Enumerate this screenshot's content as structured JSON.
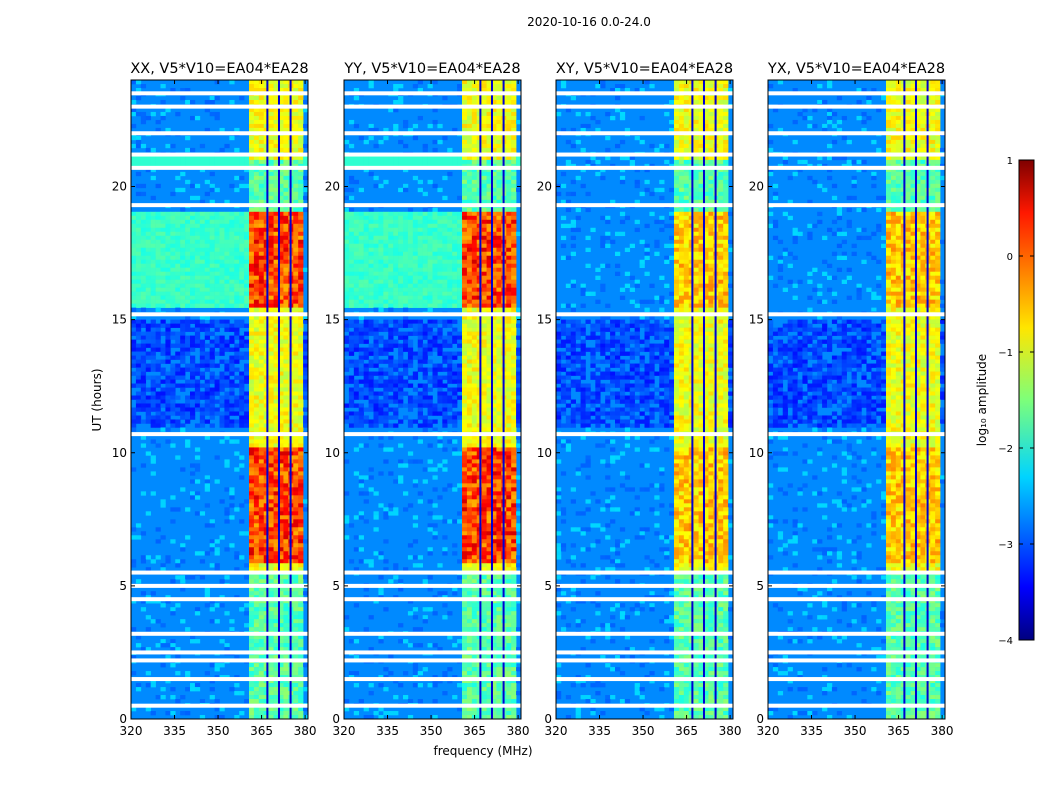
{
  "chart_data": {
    "type": "heatmap",
    "suptitle": "2020-10-16 0.0-24.0",
    "xlabel": "frequency (MHz)",
    "ylabel": "UT (hours)",
    "xlim": [
      320,
      381
    ],
    "ylim": [
      0,
      24
    ],
    "xticks": [
      320,
      335,
      350,
      365,
      380
    ],
    "yticks": [
      0,
      5,
      10,
      15,
      20
    ],
    "panels": [
      {
        "title": "XX, V5*V10=EA04*EA28",
        "pol": "XX"
      },
      {
        "title": "YY, V5*V10=EA04*EA28",
        "pol": "YY"
      },
      {
        "title": "XY, V5*V10=EA04*EA28",
        "pol": "XY"
      },
      {
        "title": "YX, V5*V10=EA04*EA28",
        "pol": "YX"
      }
    ],
    "colorbar": {
      "label": "log₁₀ amplitude",
      "range": [
        -4,
        1
      ],
      "ticks": [
        1,
        0,
        -1,
        -2,
        -3,
        -4
      ],
      "colormap": "jet"
    },
    "strong_band_mhz": [
      361,
      380
    ],
    "flagged_ut_hours": [
      0.5,
      1.5,
      2.2,
      2.5,
      3.2,
      4.5,
      5.0,
      5.5,
      10.7,
      15.2,
      19.3,
      20.7,
      21.2,
      22.0,
      23.0,
      23.5
    ],
    "colors": {
      "background": "#ffffff",
      "axis": "#000000",
      "flag": "#ffffff"
    }
  }
}
